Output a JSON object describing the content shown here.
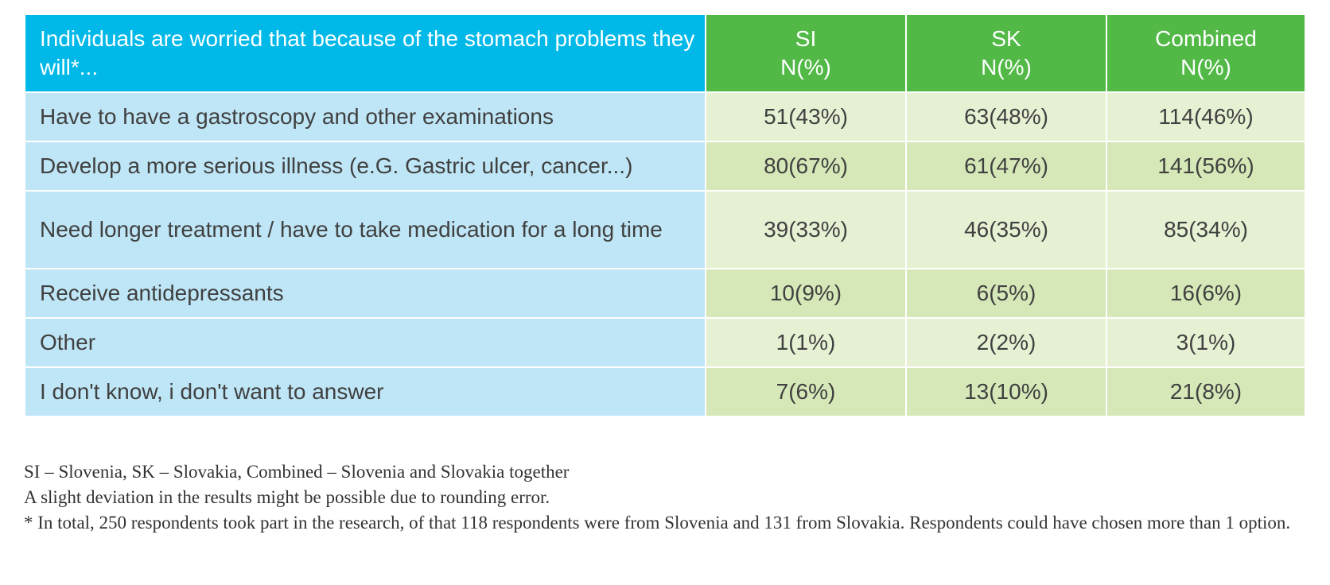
{
  "table": {
    "header": {
      "label": "Individuals are worried that because of the stomach problems they will*...",
      "columns": [
        {
          "line1": "SI",
          "line2": "N(%)"
        },
        {
          "line1": "SK",
          "line2": "N(%)"
        },
        {
          "line1": "Combined",
          "line2": "N(%)"
        }
      ]
    },
    "rows": [
      {
        "label": "Have to have a gastroscopy and other examinations",
        "si": "51(43%)",
        "sk": "63(48%)",
        "combined": "114(46%)"
      },
      {
        "label": "Develop a more serious illness (e.G. Gastric ulcer, cancer...)",
        "si": "80(67%)",
        "sk": "61(47%)",
        "combined": "141(56%)"
      },
      {
        "label": "Need longer treatment / have to take medication for a long time",
        "si": "39(33%)",
        "sk": "46(35%)",
        "combined": "85(34%)"
      },
      {
        "label": "Receive antidepressants",
        "si": "10(9%)",
        "sk": "6(5%)",
        "combined": "16(6%)"
      },
      {
        "label": "Other",
        "si": "1(1%)",
        "sk": "2(2%)",
        "combined": "3(1%)"
      },
      {
        "label": "I don't know, i don't want to answer",
        "si": "7(6%)",
        "sk": "13(10%)",
        "combined": "21(8%)"
      }
    ]
  },
  "notes": {
    "abbreviations": "SI – Slovenia, SK – Slovakia, Combined – Slovenia and Slovakia together",
    "rounding": "A slight deviation in the results might be possible due to rounding error.",
    "total": "* In total, 250 respondents took part in the research, of that 118 respondents were from Slovenia and 131 from Slovakia. Respondents could have chosen more than 1 option."
  },
  "colors": {
    "header_label_bg": "#00b9e8",
    "header_col_bg": "#52b947",
    "label_cell_bg": "#bfe6f6",
    "value_cell_light": "#e6f1d3",
    "value_cell_dark": "#d6e8b8"
  }
}
